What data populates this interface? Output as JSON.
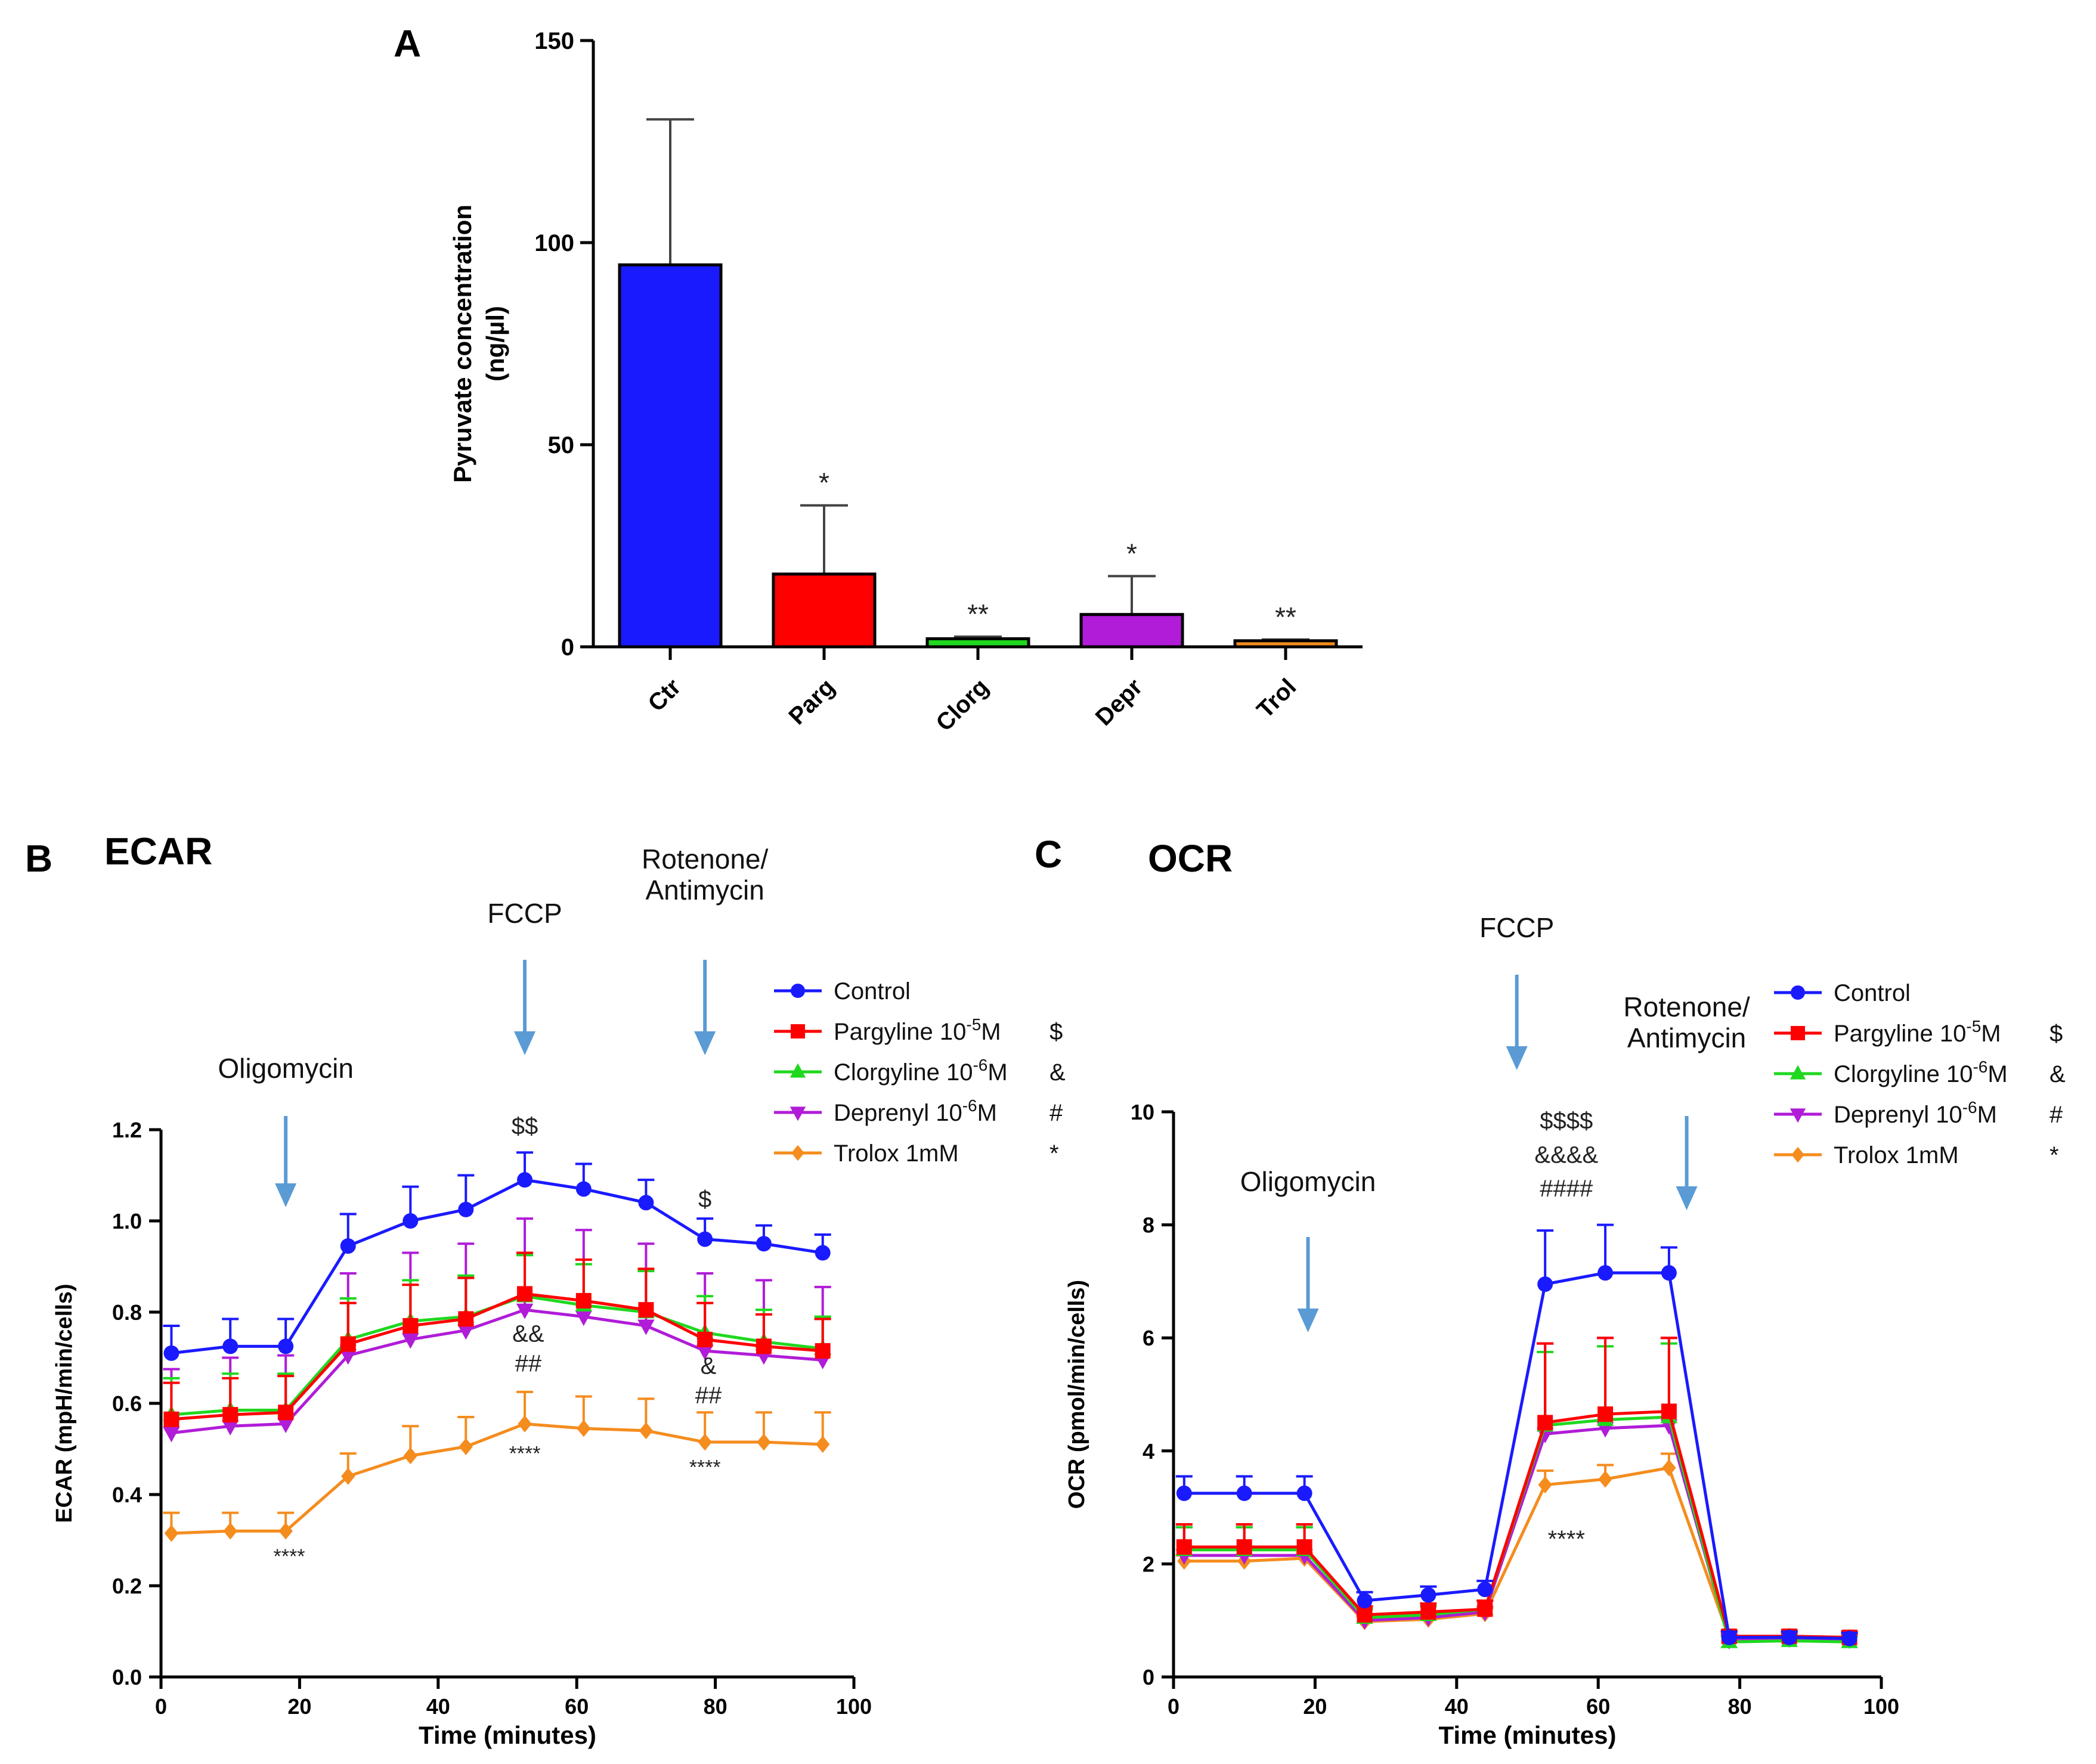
{
  "colors": {
    "control": "#1a1aff",
    "pargyline": "#ff0000",
    "clorgyline": "#1fd81f",
    "deprenyl": "#b01cd8",
    "trolox": "#f58c1e",
    "arrow": "#5a9bd5"
  },
  "chart_data": [
    {
      "id": "A",
      "type": "bar",
      "panel_label": "A",
      "title": "",
      "ylabel_line1": "Pyruvate concentration",
      "ylabel_line2": "(ng/µl)",
      "xlabel": "",
      "ylim": [
        0,
        150
      ],
      "yticks": [
        "0",
        "50",
        "100",
        "150"
      ],
      "categories": [
        "Ctr",
        "Parg",
        "Clorg",
        "Depr",
        "Trol"
      ],
      "values": [
        94.5,
        18.0,
        2.0,
        8.0,
        1.5
      ],
      "errors": [
        36,
        17,
        0.5,
        9.5,
        0.3
      ],
      "significance": [
        "",
        "*",
        "**",
        "*",
        "**"
      ],
      "bar_colors": [
        "#1a1aff",
        "#ff0000",
        "#1fd81f",
        "#b01cd8",
        "#f58c1e"
      ]
    },
    {
      "id": "B",
      "type": "line",
      "panel_label": "B",
      "title": "ECAR",
      "xlabel": "Time (minutes)",
      "ylabel": "ECAR (mpH/min/cells)",
      "xlim": [
        0,
        100
      ],
      "ylim": [
        0,
        1.2
      ],
      "xticks": [
        "0",
        "20",
        "40",
        "60",
        "80",
        "100"
      ],
      "yticks": [
        "0.0",
        "0.2",
        "0.4",
        "0.6",
        "0.8",
        "1.0",
        "1.2"
      ],
      "x": [
        1.5,
        10,
        18,
        27,
        36,
        44,
        52.5,
        61,
        70,
        78.5,
        87,
        95.5
      ],
      "series": [
        {
          "name": "Control",
          "marker": "circle",
          "values": [
            0.71,
            0.725,
            0.725,
            0.945,
            1.0,
            1.025,
            1.09,
            1.07,
            1.04,
            0.96,
            0.95,
            0.93
          ],
          "errors": [
            0.06,
            0.06,
            0.06,
            0.07,
            0.075,
            0.075,
            0.06,
            0.055,
            0.05,
            0.045,
            0.04,
            0.04
          ]
        },
        {
          "name": "Pargyline 10",
          "sup": "-5",
          "unit": "M",
          "sig": "$",
          "marker": "square",
          "values": [
            0.565,
            0.575,
            0.58,
            0.73,
            0.77,
            0.785,
            0.84,
            0.825,
            0.805,
            0.74,
            0.725,
            0.715
          ],
          "errors": [
            0.08,
            0.08,
            0.08,
            0.09,
            0.09,
            0.09,
            0.09,
            0.09,
            0.09,
            0.08,
            0.07,
            0.07
          ]
        },
        {
          "name": "Clorgyline 10",
          "sup": "-6",
          "unit": "M",
          "sig": "&",
          "marker": "triangle-up",
          "values": [
            0.575,
            0.585,
            0.585,
            0.74,
            0.78,
            0.79,
            0.835,
            0.815,
            0.8,
            0.755,
            0.735,
            0.72
          ],
          "errors": [
            0.08,
            0.08,
            0.08,
            0.09,
            0.09,
            0.09,
            0.09,
            0.09,
            0.09,
            0.08,
            0.07,
            0.07
          ]
        },
        {
          "name": "Deprenyl 10",
          "sup": "-6",
          "unit": "M",
          "sig": "#",
          "marker": "triangle-down",
          "values": [
            0.535,
            0.55,
            0.555,
            0.705,
            0.74,
            0.76,
            0.805,
            0.79,
            0.77,
            0.715,
            0.705,
            0.695
          ],
          "errors": [
            0.14,
            0.15,
            0.15,
            0.18,
            0.19,
            0.19,
            0.2,
            0.19,
            0.18,
            0.17,
            0.165,
            0.16
          ]
        },
        {
          "name": "Trolox 1mM",
          "sig": "*",
          "marker": "diamond",
          "values": [
            0.315,
            0.32,
            0.32,
            0.44,
            0.485,
            0.505,
            0.555,
            0.545,
            0.54,
            0.515,
            0.515,
            0.51
          ],
          "errors": [
            0.045,
            0.04,
            0.04,
            0.05,
            0.065,
            0.065,
            0.07,
            0.07,
            0.07,
            0.065,
            0.065,
            0.07
          ]
        }
      ],
      "injections": [
        {
          "label_lines": [
            "Oligomycin"
          ],
          "x": 18
        },
        {
          "label_lines": [
            "FCCP"
          ],
          "x": 52.5
        },
        {
          "label_lines": [
            "Rotenone/",
            "Antimycin"
          ],
          "x": 78.5
        }
      ],
      "annotations": [
        {
          "text": "$$",
          "x": 52.5,
          "y": 1.19
        },
        {
          "text": "$",
          "x": 78.5,
          "y": 1.03
        },
        {
          "text": "&&",
          "x": 53,
          "y": 0.735
        },
        {
          "text": "##",
          "x": 53,
          "y": 0.67
        },
        {
          "text": "&",
          "x": 79,
          "y": 0.665
        },
        {
          "text": "##",
          "x": 79,
          "y": 0.6
        },
        {
          "text": "****",
          "x": 18.5,
          "y": 0.25
        },
        {
          "text": "****",
          "x": 52.5,
          "y": 0.475
        },
        {
          "text": "****",
          "x": 78.5,
          "y": 0.445
        }
      ]
    },
    {
      "id": "C",
      "type": "line",
      "panel_label": "C",
      "title": "OCR",
      "xlabel": "Time (minutes)",
      "ylabel": "OCR (pmol/min/cells)",
      "xlim": [
        0,
        100
      ],
      "ylim": [
        0,
        10
      ],
      "xticks": [
        "0",
        "20",
        "40",
        "60",
        "80",
        "100"
      ],
      "yticks": [
        "0",
        "2",
        "4",
        "6",
        "8",
        "10"
      ],
      "x": [
        1.5,
        10,
        18.5,
        27,
        36,
        44,
        52.5,
        61,
        70,
        78.5,
        87,
        95.5
      ],
      "series": [
        {
          "name": "Control",
          "marker": "circle",
          "values": [
            3.25,
            3.25,
            3.25,
            1.35,
            1.45,
            1.55,
            6.95,
            7.15,
            7.15,
            0.7,
            0.7,
            0.68
          ],
          "errors": [
            0.3,
            0.3,
            0.3,
            0.15,
            0.15,
            0.15,
            0.95,
            0.85,
            0.45,
            0.1,
            0.1,
            0.1
          ]
        },
        {
          "name": "Pargyline 10",
          "sup": "-5",
          "unit": "M",
          "sig": "$",
          "marker": "square",
          "values": [
            2.3,
            2.3,
            2.3,
            1.1,
            1.15,
            1.2,
            4.5,
            4.65,
            4.7,
            0.72,
            0.72,
            0.7
          ],
          "errors": [
            0.4,
            0.4,
            0.4,
            0.15,
            0.15,
            0.15,
            1.4,
            1.35,
            1.3,
            0.1,
            0.1,
            0.1
          ]
        },
        {
          "name": "Clorgyline 10",
          "sup": "-6",
          "unit": "M",
          "sig": "&",
          "marker": "triangle-up",
          "values": [
            2.25,
            2.25,
            2.25,
            1.05,
            1.1,
            1.2,
            4.45,
            4.55,
            4.6,
            0.62,
            0.64,
            0.62
          ],
          "errors": [
            0.4,
            0.4,
            0.4,
            0.15,
            0.15,
            0.15,
            1.3,
            1.3,
            1.3,
            0.1,
            0.1,
            0.1
          ]
        },
        {
          "name": "Deprenyl 10",
          "sup": "-6",
          "unit": "M",
          "sig": "#",
          "marker": "triangle-down",
          "values": [
            2.15,
            2.15,
            2.15,
            1.0,
            1.05,
            1.15,
            4.3,
            4.4,
            4.45,
            0.65,
            0.68,
            0.66
          ],
          "errors": [
            0.5,
            0.5,
            0.5,
            0.2,
            0.2,
            0.2,
            1.6,
            1.6,
            1.55,
            0.1,
            0.1,
            0.1
          ]
        },
        {
          "name": "Trolox 1mM",
          "sig": "*",
          "marker": "diamond",
          "values": [
            2.05,
            2.05,
            2.1,
            0.98,
            1.02,
            1.12,
            3.4,
            3.5,
            3.7,
            0.7,
            0.72,
            0.7
          ],
          "errors": [
            0.1,
            0.1,
            0.1,
            0.1,
            0.1,
            0.1,
            0.25,
            0.25,
            0.25,
            0.1,
            0.1,
            0.1
          ]
        }
      ],
      "injections": [
        {
          "label_lines": [
            "Oligomycin"
          ],
          "x": 19
        },
        {
          "label_lines": [
            "FCCP"
          ],
          "x": 48.5
        },
        {
          "label_lines": [
            "Rotenone/",
            "Antimycin"
          ],
          "x": 72.5
        }
      ],
      "annotations": [
        {
          "text": "$$$$",
          "x": 55.5,
          "y": 9.7
        },
        {
          "text": "&&&&",
          "x": 55.5,
          "y": 9.1
        },
        {
          "text": "####",
          "x": 55.5,
          "y": 8.5
        },
        {
          "text": "****",
          "x": 55.5,
          "y": 2.3
        }
      ]
    }
  ]
}
